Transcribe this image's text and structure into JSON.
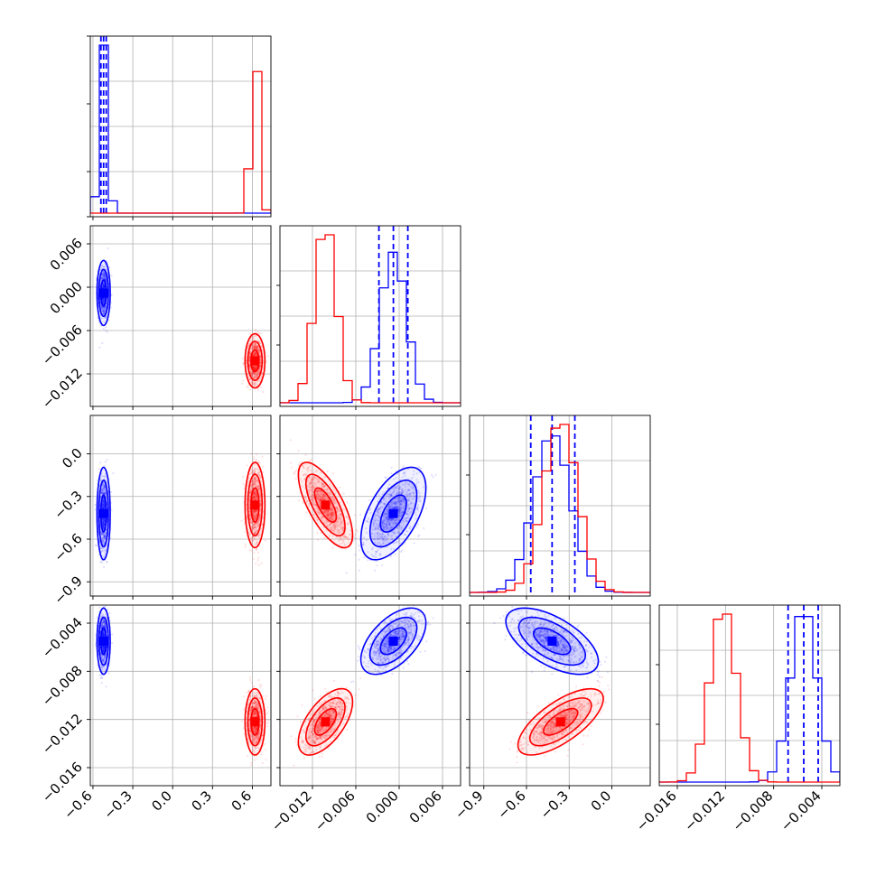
{
  "colors": {
    "series_a": "#0000ff",
    "series_b": "#ff0000",
    "grid": "#b0b0b0"
  },
  "chart_data": {
    "type": "corner",
    "grid": true,
    "parameters": [
      {
        "ticks": [
          -0.6,
          -0.3,
          0.0,
          0.3,
          0.6
        ],
        "tick_labels": [
          "−0.6",
          "−0.3",
          "0.0",
          "0.3",
          "0.6"
        ],
        "range": [
          -0.62,
          0.74
        ]
      },
      {
        "ticks": [
          -0.012,
          -0.006,
          0.0,
          0.006
        ],
        "tick_labels": [
          "−0.012",
          "−0.006",
          "0.000",
          "0.006"
        ],
        "range": [
          -0.0165,
          0.0085
        ]
      },
      {
        "ticks": [
          -0.9,
          -0.6,
          -0.3,
          0.0
        ],
        "tick_labels": [
          "−0.9",
          "−0.6",
          "−0.3",
          "0.0"
        ],
        "range": [
          -1.0,
          0.27
        ]
      },
      {
        "ticks": [
          -0.016,
          -0.012,
          -0.008,
          -0.004
        ],
        "tick_labels": [
          "−0.016",
          "−0.012",
          "−0.008",
          "−0.004"
        ],
        "range": [
          -0.0175,
          -0.0025
        ]
      }
    ],
    "series": [
      {
        "color": "#0000ff",
        "mean": [
          -0.52,
          -0.0008,
          -0.42,
          -0.0055
        ],
        "sd": [
          0.02,
          0.0018,
          0.13,
          0.0011
        ],
        "quantile_lines": [
          [
            -0.54,
            -0.52,
            -0.5
          ],
          [
            -0.0028,
            -0.0008,
            0.0012
          ],
          [
            -0.57,
            -0.42,
            -0.26
          ],
          [
            -0.0068,
            -0.0055,
            -0.0043
          ]
        ],
        "correlations": {
          "1-0": 0.0,
          "2-0": 0.0,
          "2-1": 0.55,
          "3-0": 0.0,
          "3-1": 0.55,
          "3-2": -0.6
        }
      },
      {
        "color": "#ff0000",
        "mean": [
          0.62,
          -0.0102,
          -0.36,
          -0.0122
        ],
        "sd": [
          0.03,
          0.0015,
          0.12,
          0.0011
        ],
        "quantile_lines": [],
        "correlations": {
          "1-0": 0.0,
          "2-0": 0.0,
          "2-1": -0.7,
          "3-0": 0.0,
          "3-1": 0.6,
          "3-2": 0.7
        }
      }
    ]
  }
}
